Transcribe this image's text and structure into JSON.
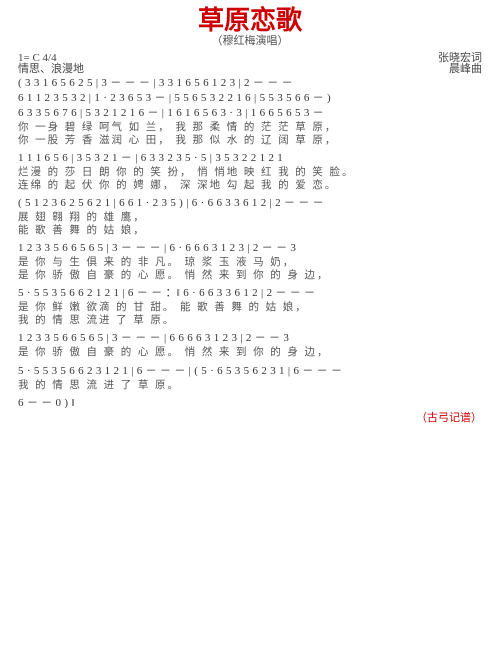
{
  "title": "草原恋歌",
  "subtitle": "（穆红梅演唱）",
  "header": {
    "left1": "1= C 4/4",
    "left2": "情思、浪漫地",
    "right1": "张晓宏词",
    "right2": "晨峰曲"
  },
  "lines": [
    {
      "n": "( 3 3 1 6 5 6 2 5 | 3 － － － | 3 3 1 6 5 6 1 2 3 | 2 － － －"
    },
    {
      "n": "6 1  1 2 3 5 3 2 | 1 · 2 3 6 5  3 － | 5 5 6  5 3 2 2 1 6 | 5 5 3 5 6 6 － )"
    },
    {
      "n": "6  3 3  5 6 7  6 | 5 3  2 1 2 1  6 － | 1  6 1  6 5 6  3 · 3 | 1  6 6 5 6 5  3 －",
      "l1": "你 一身  碧  绿   呵气 如   兰，  我 那   柔  情 的  茫 茫 草   原，",
      "l2": "你 一股  芳  香   滋润 心   田，  我 那   似  水 的  辽 阔 草   原，"
    },
    {
      "n": "1 1  1  6  5  6 | 3  5  3  2 1 － | 6  3 3  2  3  5 · 5 | 3 5 3 2  2 1 2 1",
      "l1": "烂漫 的  莎 日  朗   你 的 笑  扮，  悄 悄地  映 红  我 的  笑      脸。",
      "l2": "连绵 的  起 伏    你 的 娉  娜，  深 深地  勾 起  我 的  爱      恋。"
    },
    {
      "n": "( 5 1 2 3 6  2 5 6 2 1 | 6 6 1 · 2 3 5 )  | 6 · 6 6  3 3  6 1 2 | 2 － － －",
      "l1": "                                          展  翅  翱 翔 的 雄      鹰，",
      "l2": "                                          能  歌  善 舞 的 姑      娘，"
    },
    {
      "n": "1  2 3  3 5 6  6 5 6 5 | 3 － － － | 6 · 6 6 6  3  1 2 3 | 2 － －  3",
      "l1": "是 你 与 生  俱 来 的  非     凡。    琼  浆 玉 液  马     奶，",
      "l2": "是 你 骄 傲  自 豪 的  心     愿。    悄  然 来 到  你 的   身    边，"
    },
    {
      "n": "5 · 5  5 3  5 6 6  2 1 2 1 | 6 － － ：‖  6 · 6 6  3 3  6 1 2 | 2 － － －",
      "l1": "是  你 鲜 嫩  欲滴 的  甘     甜。     能  歌  善 舞 的 姑     娘，",
      "l2": "我  的 情 思  流进 了  草     原。"
    },
    {
      "n": "1  2 3  3 5 6  6 5 6 5 | 3 － － － | 6  6 6 6  3  1 2 3 | 2 － －  3",
      "l1": "是 你 骄 傲  自 豪 的  心     愿。    悄  然 来 到  你 的  身    边，"
    },
    {
      "n": "5 · 5  5 3  5 6 6  2 3 1 2 1 | 6 － － － | ( 5 · 6  5 3 5 6  2 3 1 | 6 － － －",
      "l1": "我  的 情 思  流 进 了 草       原。"
    },
    {
      "n": "6 － －  0 ) ‖"
    }
  ],
  "footer": "（古弓记谱）",
  "colors": {
    "title": "#c00",
    "text": "#333",
    "lyric": "#555"
  }
}
